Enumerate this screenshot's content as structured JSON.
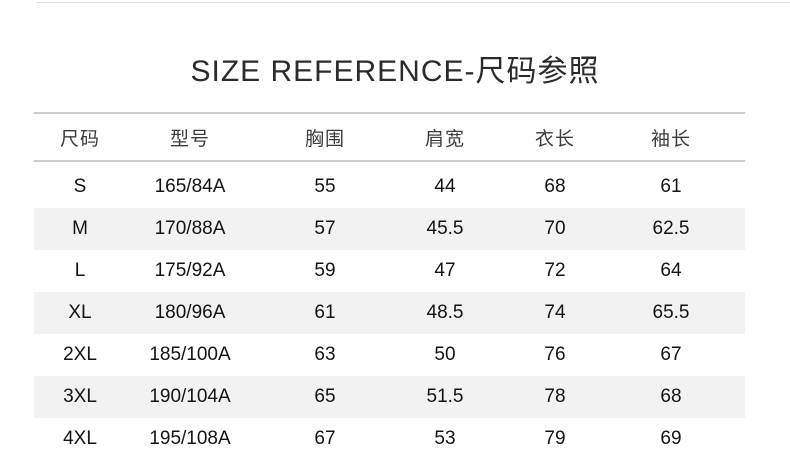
{
  "page": {
    "title": "SIZE REFERENCE-尺码参照"
  },
  "size_table": {
    "columns": [
      "尺码",
      "型号",
      "胸围",
      "肩宽",
      "衣长",
      "袖长"
    ],
    "rows": [
      [
        "S",
        "165/84A",
        "55",
        "44",
        "68",
        "61"
      ],
      [
        "M",
        "170/88A",
        "57",
        "45.5",
        "70",
        "62.5"
      ],
      [
        "L",
        "175/92A",
        "59",
        "47",
        "72",
        "64"
      ],
      [
        "XL",
        "180/96A",
        "61",
        "48.5",
        "74",
        "65.5"
      ],
      [
        "2XL",
        "185/100A",
        "63",
        "50",
        "76",
        "67"
      ],
      [
        "3XL",
        "190/104A",
        "65",
        "51.5",
        "78",
        "68"
      ],
      [
        "4XL",
        "195/108A",
        "67",
        "53",
        "79",
        "69"
      ]
    ],
    "colors": {
      "band_background": "#f2f2f2",
      "rule": "#cccccc",
      "title_text": "#2b2b2b",
      "header_text": "#3c3c3c",
      "data_text": "#141414"
    }
  }
}
